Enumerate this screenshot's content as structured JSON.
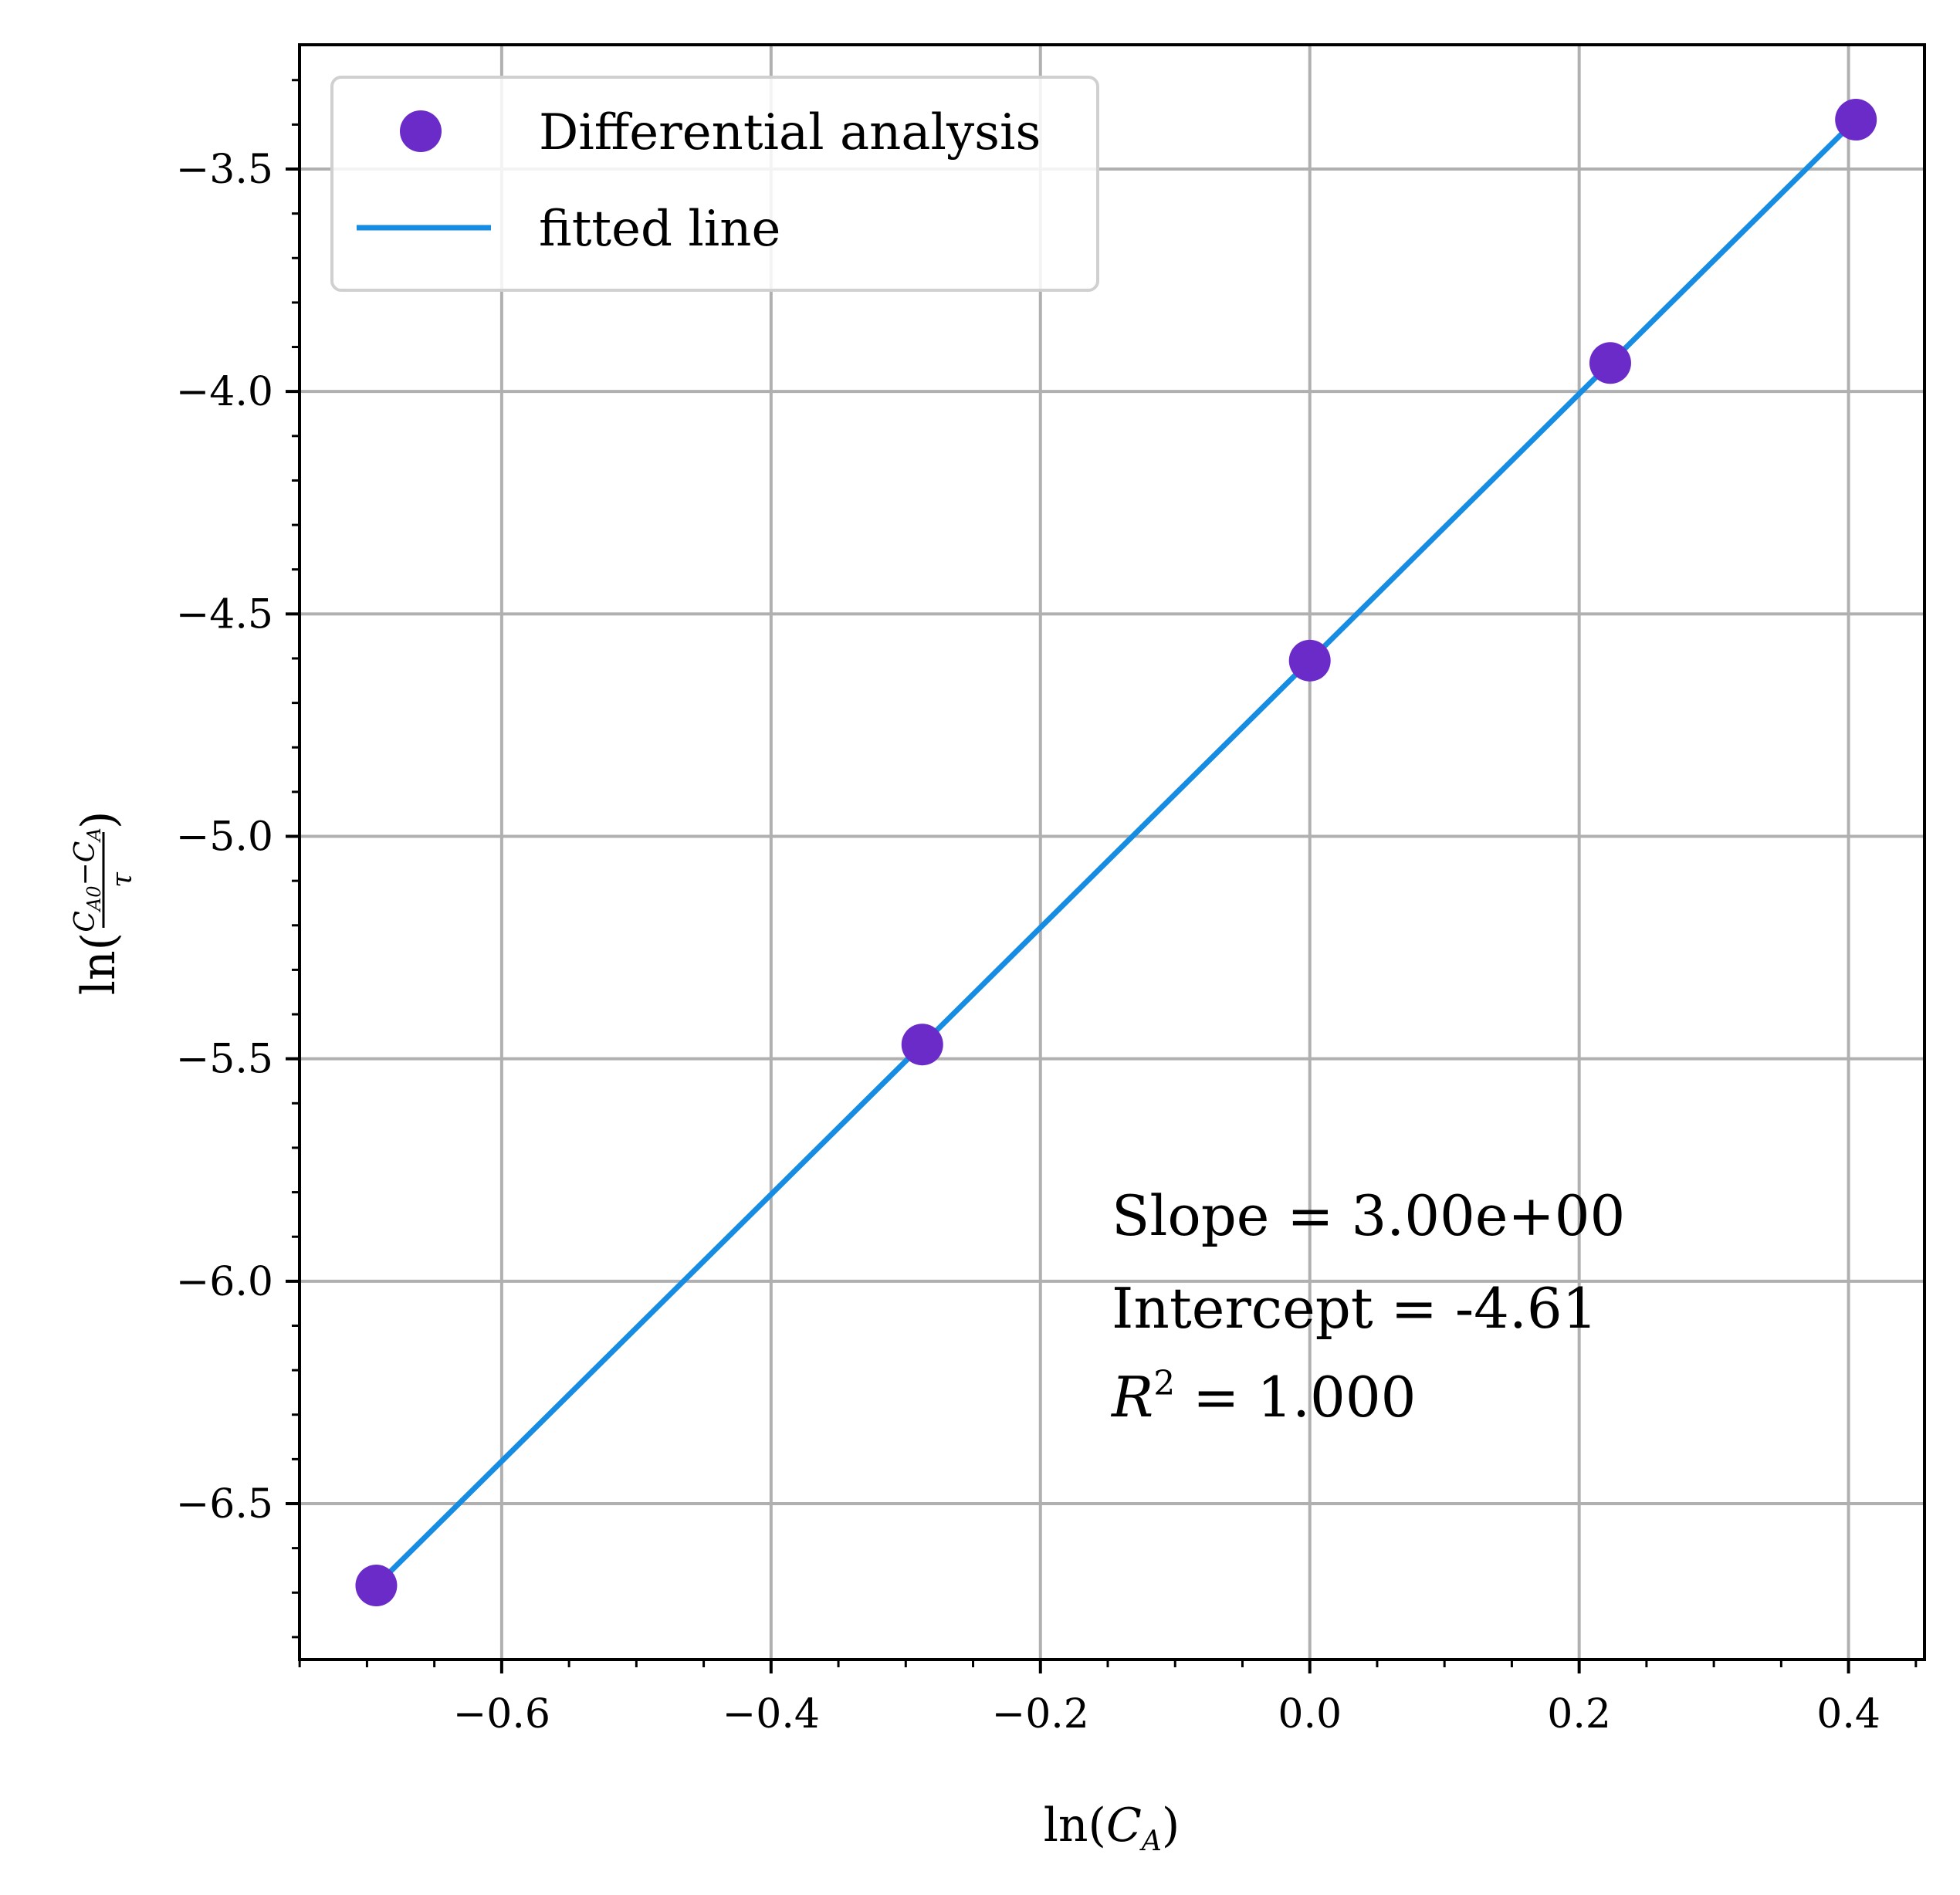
{
  "chart_data": {
    "type": "scatter",
    "x_label": {
      "prefix": "ln(",
      "var": "C",
      "sub": "A",
      "suffix": ")"
    },
    "y_label": {
      "prefix": "ln(",
      "num_var1": "C",
      "num_sub1": "A0",
      "minus": "−",
      "num_var2": "C",
      "num_sub2": "A",
      "den": "τ",
      "suffix": ")"
    },
    "xlim": [
      -0.7501,
      0.4564
    ],
    "ylim": [
      -6.8505,
      -3.2206
    ],
    "xticks": [
      -0.6,
      -0.4,
      -0.2,
      0.0,
      0.2,
      0.4
    ],
    "xtick_labels": [
      "−0.6",
      "−0.4",
      "−0.2",
      "0.0",
      "0.2",
      "0.4"
    ],
    "yticks": [
      -3.5,
      -4.0,
      -4.5,
      -5.0,
      -5.5,
      -6.0,
      -6.5
    ],
    "ytick_labels": [
      "−3.5",
      "−4.0",
      "−4.5",
      "−5.0",
      "−5.5",
      "−6.0",
      "−6.5"
    ],
    "grid": true,
    "legend_position": "upper-left",
    "series": [
      {
        "name": "Differential analysis",
        "kind": "scatter",
        "color": "#6a2bc8",
        "x": [
          -0.6931,
          -0.2877,
          0.0,
          0.2231,
          0.4055
        ],
        "y": [
          -6.684,
          -5.468,
          -4.605,
          -3.936,
          -3.389
        ]
      },
      {
        "name": "fitted line",
        "kind": "line",
        "color": "#168de2",
        "x": [
          -0.6931,
          0.4055
        ],
        "y": [
          -6.684,
          -3.389
        ]
      }
    ],
    "annotation": {
      "slope_line": "Slope = 3.00e+00",
      "intercept_line": "Intercept = -4.61",
      "r2_var": "R",
      "r2_sup": "2",
      "r2_rest": " = 1.000"
    }
  }
}
